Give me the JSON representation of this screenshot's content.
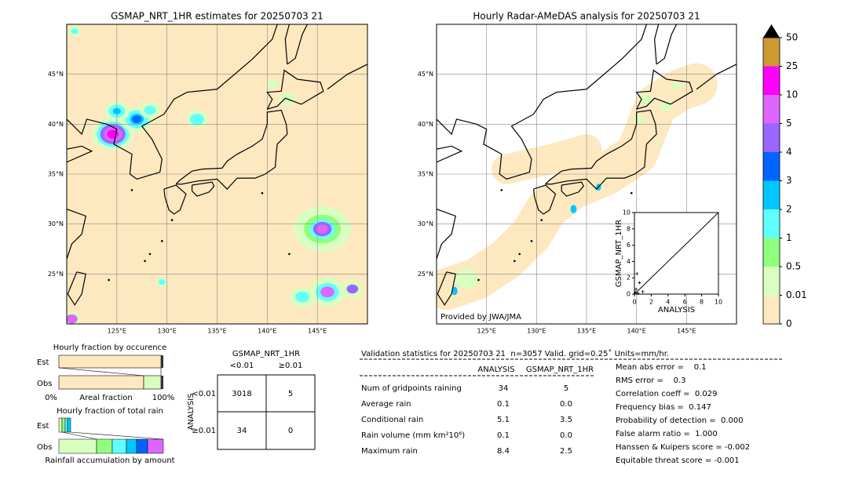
{
  "left_map": {
    "title": "GSMAP_NRT_1HR estimates for 20250703 21",
    "xlim": [
      120,
      150
    ],
    "ylim": [
      20,
      50
    ],
    "xticks": [
      {
        "value": 125,
        "label": "125°E"
      },
      {
        "value": 130,
        "label": "130°E"
      },
      {
        "value": 135,
        "label": "135°E"
      },
      {
        "value": 140,
        "label": "140°E"
      },
      {
        "value": 145,
        "label": "145°E"
      }
    ],
    "yticks": [
      {
        "value": 25,
        "label": "25°N"
      },
      {
        "value": 30,
        "label": "30°N"
      },
      {
        "value": 35,
        "label": "35°N"
      },
      {
        "value": 40,
        "label": "40°N"
      },
      {
        "value": 45,
        "label": "45°N"
      }
    ]
  },
  "right_map": {
    "title": "Hourly Radar-AMeDAS analysis for 20250703 21",
    "credit": "Provided by JWA/JMA",
    "xlim": [
      120,
      150
    ],
    "ylim": [
      20,
      50
    ],
    "xticks": [
      {
        "value": 125,
        "label": "125°E"
      },
      {
        "value": 130,
        "label": "130°E"
      },
      {
        "value": 135,
        "label": "135°E"
      },
      {
        "value": 140,
        "label": "140°E"
      },
      {
        "value": 145,
        "label": "145°E"
      }
    ],
    "yticks": [
      {
        "value": 25,
        "label": "25°N"
      },
      {
        "value": 30,
        "label": "30°N"
      },
      {
        "value": 35,
        "label": "35°N"
      },
      {
        "value": 40,
        "label": "40°N"
      },
      {
        "value": 45,
        "label": "45°N"
      }
    ]
  },
  "colorbar": {
    "levels": [
      0,
      0.01,
      0.5,
      1,
      2,
      3,
      4,
      5,
      10,
      25,
      50
    ],
    "colors": [
      "#fee8c0",
      "#d8ffc0",
      "#90ff80",
      "#60ffff",
      "#00c8ff",
      "#0064ff",
      "#9966ff",
      "#dd66ff",
      "#ff00ff",
      "#cc9933"
    ]
  },
  "inset": {
    "xlabel": "ANALYSIS",
    "ylabel": "GSMAP_NRT_1HR",
    "xlim": [
      0,
      10
    ],
    "ylim": [
      0,
      10
    ],
    "xticks": [
      0,
      2,
      4,
      6,
      8,
      10
    ],
    "yticks": [
      0,
      2,
      4,
      6,
      8,
      10
    ],
    "x": [
      0.1,
      0.3,
      0.6,
      1.0,
      0.2,
      0.4
    ],
    "y": [
      0.2,
      2.5,
      1.4,
      0.3,
      0.6,
      0.1
    ]
  },
  "occurrence": {
    "title": "Hourly fraction by occurence",
    "rows": [
      "Est",
      "Obs"
    ],
    "axis": [
      "0%",
      "Areal fraction",
      "100%"
    ]
  },
  "total_rain": {
    "title": "Hourly fraction of total rain",
    "rows": [
      "Est",
      "Obs"
    ],
    "xlabel": "Rainfall accumulation by amount"
  },
  "contingency": {
    "title": "GSMAP_NRT_1HR",
    "cols": [
      "<0.01",
      "≥0.01"
    ],
    "row_title": "ANALYSIS",
    "rows": [
      "<0.01",
      "≥0.01"
    ],
    "cells": [
      [
        "3018",
        "5"
      ],
      [
        "34",
        "0"
      ]
    ]
  },
  "stats": {
    "header": "Validation statistics for 20250703 21  n=3057 Valid. grid=0.25˚ Units=mm/hr.",
    "columns": [
      "ANALYSIS",
      "GSMAP_NRT_1HR"
    ],
    "rows": [
      {
        "label": "Num of gridpoints raining",
        "values": [
          "34",
          "5"
        ]
      },
      {
        "label": "Average rain",
        "values": [
          "0.1",
          "0.0"
        ]
      },
      {
        "label": "Conditional rain",
        "values": [
          "5.1",
          "3.5"
        ]
      },
      {
        "label": "Rain volume (mm km²10⁶)",
        "values": [
          "0.1",
          "0.0"
        ]
      },
      {
        "label": "Maximum rain",
        "values": [
          "8.4",
          "2.5"
        ]
      }
    ],
    "scores": [
      "Mean abs error =    0.1",
      "RMS error =    0.3",
      "Correlation coeff =  0.029",
      "Frequency bias =  0.147",
      "Probability of detection =  0.000",
      "False alarm ratio =  1.000",
      "Hanssen & Kuipers score = -0.002",
      "Equitable threat score = -0.001"
    ]
  }
}
